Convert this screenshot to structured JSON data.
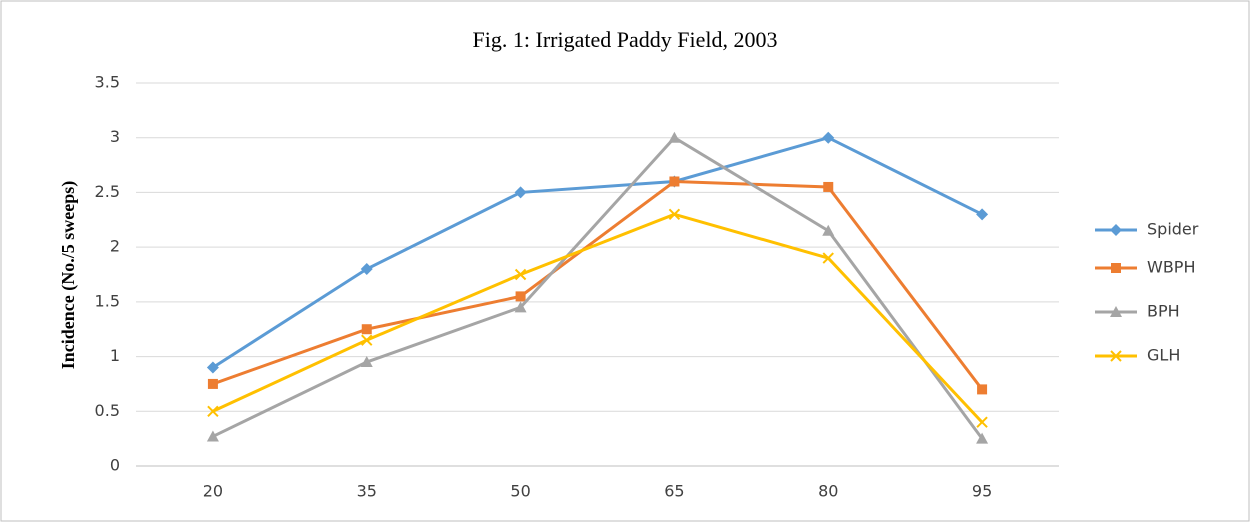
{
  "chart_data": {
    "type": "line",
    "title": "Fig. 1: Irrigated Paddy Field, 2003",
    "y_label": "Incidence (No./5 sweeps)",
    "categories": [
      "20",
      "35",
      "50",
      "65",
      "80",
      "95"
    ],
    "series": [
      {
        "name": "Spider",
        "color": "#5b9bd5",
        "marker": "diamond",
        "values": [
          0.9,
          1.8,
          2.5,
          2.6,
          3.0,
          2.3
        ]
      },
      {
        "name": "WBPH",
        "color": "#ed7d31",
        "marker": "square",
        "values": [
          0.75,
          1.25,
          1.55,
          2.6,
          2.55,
          0.7
        ]
      },
      {
        "name": "BPH",
        "color": "#a5a5a5",
        "marker": "triangle",
        "values": [
          0.27,
          0.95,
          1.45,
          3.0,
          2.15,
          0.25
        ]
      },
      {
        "name": "GLH",
        "color": "#ffc000",
        "marker": "x",
        "values": [
          0.5,
          1.15,
          1.75,
          2.3,
          1.9,
          0.4
        ]
      }
    ],
    "ylim": [
      0,
      3.5
    ],
    "yticks": [
      0,
      0.5,
      1,
      1.5,
      2,
      2.5,
      3,
      3.5
    ],
    "grid": true,
    "legend": "right"
  }
}
